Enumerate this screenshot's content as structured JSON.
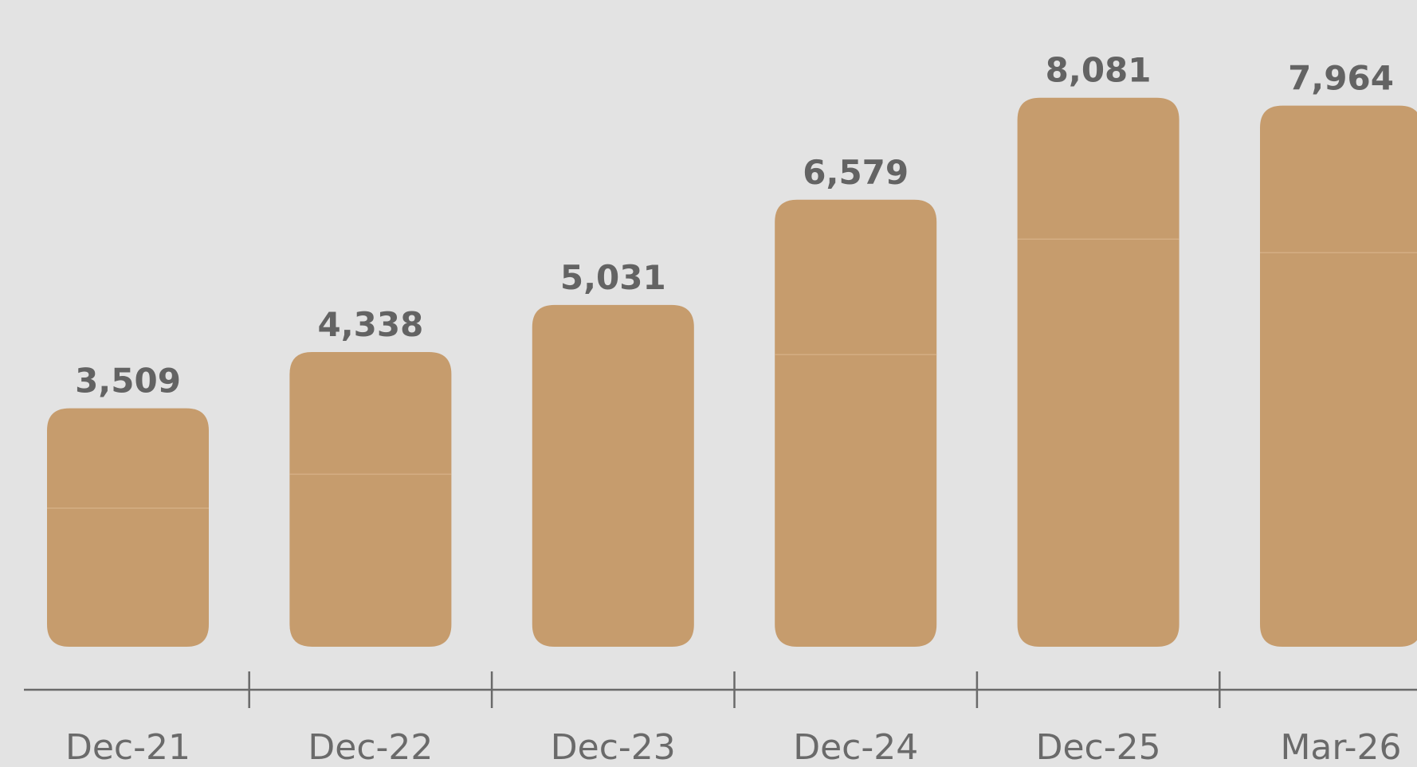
{
  "chart_data": {
    "type": "bar",
    "categories": [
      "Dec-21",
      "Dec-22",
      "Dec-23",
      "Dec-24",
      "Dec-25",
      "Mar-26"
    ],
    "values": [
      3509,
      4338,
      5031,
      6579,
      8081,
      7964
    ],
    "value_labels": [
      "3,509",
      "4,338",
      "5,031",
      "6,579",
      "8,081",
      "7,964"
    ],
    "segment_split_values": [
      2040,
      2540,
      null,
      4300,
      6000,
      5800
    ],
    "ylim": [
      0,
      8600
    ],
    "title": "",
    "xlabel": "",
    "ylabel": "",
    "grid": false,
    "colors": {
      "bar": "#c69c6d",
      "bar_divider": "#d4ae84",
      "label": "#636363",
      "axis": "#6a6a6a",
      "background": "#e3e3e3"
    }
  }
}
